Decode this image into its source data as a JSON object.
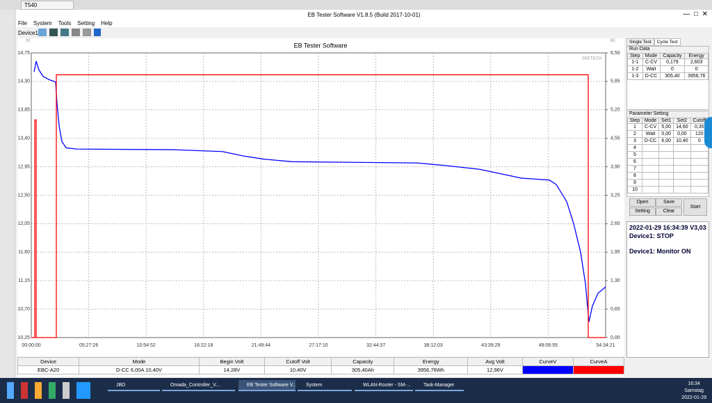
{
  "browser": {
    "tab": "T540"
  },
  "window": {
    "title": "EB Tester Software V1.8.5 (Build 2017-10-01)",
    "menu": [
      "File",
      "System",
      "Tools",
      "Setting",
      "Help"
    ],
    "device": "Device1"
  },
  "chart_data": {
    "type": "line",
    "title": "EB Tester Software",
    "watermark": "ZKETECH",
    "y_label": "[V]",
    "y2_label": "[A]",
    "xlim": [
      0,
      196461
    ],
    "xticks": [
      {
        "value": 0,
        "label": "00:00:00"
      },
      {
        "value": 19646,
        "label": "05:27:26"
      },
      {
        "value": 39292,
        "label": "10:54:52"
      },
      {
        "value": 58938,
        "label": "16:22:18"
      },
      {
        "value": 78584,
        "label": "21:49:44"
      },
      {
        "value": 98230,
        "label": "27:17:10"
      },
      {
        "value": 117877,
        "label": "32:44:37"
      },
      {
        "value": 137523,
        "label": "38:12:03"
      },
      {
        "value": 157169,
        "label": "43:39:29"
      },
      {
        "value": 176815,
        "label": "49:06:55"
      },
      {
        "value": 196461,
        "label": "54:34:21"
      }
    ],
    "ylim": [
      10.25,
      14.75
    ],
    "yticks": [
      {
        "value": 10.25,
        "label": "10,25"
      },
      {
        "value": 10.7,
        "label": "10,70"
      },
      {
        "value": 11.15,
        "label": "11,15"
      },
      {
        "value": 11.6,
        "label": "11,60"
      },
      {
        "value": 12.05,
        "label": "12,05"
      },
      {
        "value": 12.5,
        "label": "12,50"
      },
      {
        "value": 12.95,
        "label": "12,95"
      },
      {
        "value": 13.4,
        "label": "13,40"
      },
      {
        "value": 13.85,
        "label": "13,85"
      },
      {
        "value": 14.3,
        "label": "14,30"
      },
      {
        "value": 14.75,
        "label": "14,75"
      }
    ],
    "y2lim": [
      0,
      6.5
    ],
    "y2ticks": [
      {
        "value": 0,
        "label": "0,00"
      },
      {
        "value": 0.65,
        "label": "0,65"
      },
      {
        "value": 1.3,
        "label": "1,30"
      },
      {
        "value": 1.95,
        "label": "1,95"
      },
      {
        "value": 2.6,
        "label": "2,60"
      },
      {
        "value": 3.25,
        "label": "3,25"
      },
      {
        "value": 3.9,
        "label": "3,90"
      },
      {
        "value": 4.55,
        "label": "4,55"
      },
      {
        "value": 5.2,
        "label": "5,20"
      },
      {
        "value": 5.85,
        "label": "5,85"
      },
      {
        "value": 6.5,
        "label": "6,50"
      }
    ],
    "grid": true,
    "series": [
      {
        "name": "CurveV",
        "color": "#0000ff",
        "x": [
          951,
          1665,
          2616,
          4043,
          5946,
          8325,
          8800,
          9514,
          10465,
          11892,
          15460,
          48759,
          65409,
          72544,
          79679,
          89193,
          132007,
          141521,
          153413,
          160549,
          167684,
          177198,
          179577,
          183144,
          185523,
          187902,
          189567,
          190756,
          191945,
          193848,
          196461
        ],
        "values": [
          14.45,
          14.62,
          14.48,
          14.38,
          14.33,
          14.29,
          13.95,
          13.6,
          13.35,
          13.25,
          13.23,
          13.22,
          13.19,
          13.12,
          13.07,
          13.03,
          13.01,
          12.97,
          12.91,
          12.84,
          12.77,
          12.74,
          12.67,
          12.4,
          12.05,
          11.6,
          11.1,
          10.5,
          10.75,
          10.95,
          11.05
        ]
      },
      {
        "name": "CurveA",
        "color": "#ff0000",
        "axis": "y2",
        "x": [
          0,
          1190,
          1190,
          1665,
          1665,
          8563,
          8563,
          190518,
          190518,
          196461
        ],
        "values": [
          0,
          0,
          4.97,
          4.97,
          0,
          0,
          6.0,
          6.0,
          0,
          0
        ]
      }
    ]
  },
  "summary": {
    "headers": [
      "Device",
      "Mode",
      "Begin Volt",
      "Cutoff Volt",
      "Capacity",
      "Energy",
      "Avg Volt",
      "CurveV",
      "CurveA"
    ],
    "row": [
      "EBC-A20",
      "D-CC 6,00A 10,40V",
      "14,28V",
      "10,40V",
      "305,40Ah",
      "3956,76Wh",
      "12,96V"
    ]
  },
  "tabs": [
    "Single Test",
    "Cycle Test"
  ],
  "run_data": {
    "title": "Run Data",
    "headers": [
      "Step",
      "Mode",
      "Capacity",
      "Energy"
    ],
    "rows": [
      [
        "1-1",
        "C-CV",
        "0,179",
        "2,603"
      ],
      [
        "1-2",
        "Wait",
        "0",
        "0"
      ],
      [
        "1-3",
        "D-CC",
        "305,40",
        "3956,76"
      ]
    ]
  },
  "parameter": {
    "title": "Parameter Setting",
    "headers": [
      "Step",
      "Mode",
      "Set1",
      "Set2",
      "Cutoff"
    ],
    "rows": [
      [
        "1",
        "C-CV",
        "5,00",
        "14,60",
        "0,35"
      ],
      [
        "2",
        "Wait",
        "0,00",
        "0,00",
        "120"
      ],
      [
        "3",
        "D-CC",
        "6,00",
        "10,40",
        "0"
      ],
      [
        "4"
      ],
      [
        "5"
      ],
      [
        "6"
      ],
      [
        "7"
      ],
      [
        "8"
      ],
      [
        "9"
      ],
      [
        "10"
      ]
    ]
  },
  "buttons": [
    "Open",
    "Save",
    "Setting",
    "Clear",
    "Start"
  ],
  "status": [
    "2022-01-29 16:34:39  V3,03",
    "Device1: STOP",
    "Device1: Monitor ON"
  ],
  "taskbar": {
    "items": [
      "JBD",
      "Omada_Controller_V...",
      "EB Tester Software V...",
      "System",
      "WLAN-Router - SM-...",
      "Task-Manager"
    ],
    "time": "16:34",
    "day": "Samstag",
    "date": "2022-01-29"
  }
}
